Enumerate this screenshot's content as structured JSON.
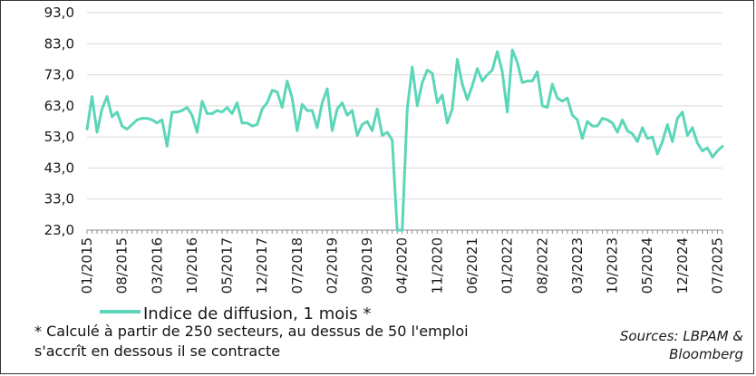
{
  "chart_data": {
    "type": "line",
    "title": "",
    "xlabel": "",
    "ylabel": "",
    "ylim": [
      23.0,
      93.0
    ],
    "y_ticks": [
      "23,0",
      "33,0",
      "43,0",
      "53,0",
      "63,0",
      "73,0",
      "83,0",
      "93,0"
    ],
    "x_ticks": [
      "01/2015",
      "08/2015",
      "03/2016",
      "10/2016",
      "05/2017",
      "12/2017",
      "07/2018",
      "02/2019",
      "09/2019",
      "04/2020",
      "11/2020",
      "06/2021",
      "01/2022",
      "08/2022",
      "03/2023",
      "10/2023",
      "05/2024",
      "12/2024",
      "07/2025"
    ],
    "grid": "horizontal",
    "legend_position": "bottom-left",
    "series": [
      {
        "name": "Indice de diffusion, 1 mois *",
        "color": "#5cd6b8",
        "start": "01/2015",
        "frequency": "monthly",
        "values": [
          55.5,
          66.0,
          54.5,
          62.0,
          66.0,
          59.5,
          61.0,
          56.5,
          55.5,
          57.0,
          58.5,
          59.0,
          59.0,
          58.5,
          57.5,
          58.5,
          50.0,
          61.0,
          61.0,
          61.5,
          62.5,
          60.0,
          54.5,
          64.5,
          60.5,
          60.5,
          61.5,
          61.0,
          62.5,
          60.5,
          64.0,
          57.5,
          57.5,
          56.5,
          57.0,
          62.0,
          64.0,
          68.0,
          67.5,
          62.5,
          71.0,
          65.5,
          55.0,
          63.5,
          61.5,
          61.5,
          56.0,
          64.0,
          68.5,
          55.0,
          62.0,
          64.0,
          60.0,
          61.5,
          53.5,
          57.0,
          58.0,
          55.0,
          62.0,
          53.5,
          54.5,
          52.0,
          23.0,
          23.0,
          62.0,
          75.5,
          63.0,
          70.5,
          74.5,
          73.5,
          64.0,
          66.5,
          57.5,
          62.0,
          78.0,
          70.0,
          65.0,
          69.5,
          75.0,
          71.0,
          73.0,
          74.5,
          80.5,
          74.0,
          61.0,
          81.0,
          77.0,
          70.5,
          71.0,
          71.0,
          74.0,
          63.0,
          62.5,
          70.0,
          65.5,
          64.5,
          65.5,
          60.0,
          58.5,
          52.5,
          58.0,
          56.5,
          56.5,
          59.0,
          58.5,
          57.5,
          54.5,
          58.5,
          55.0,
          54.0,
          51.5,
          56.0,
          52.5,
          53.0,
          47.5,
          51.5,
          57.0,
          51.5,
          59.0,
          61.0,
          53.5,
          56.0,
          51.0,
          48.5,
          49.5,
          46.5,
          48.5,
          50.0
        ]
      }
    ]
  },
  "legend": {
    "label": "Indice de diffusion, 1 mois *"
  },
  "footnote": {
    "line1": "* Calculé à partir de 250 secteurs, au dessus de 50 l'emploi",
    "line2": "s'accrît en dessous il se contracte"
  },
  "source": {
    "line1": "Sources: LBPAM &",
    "line2": "Bloomberg"
  }
}
